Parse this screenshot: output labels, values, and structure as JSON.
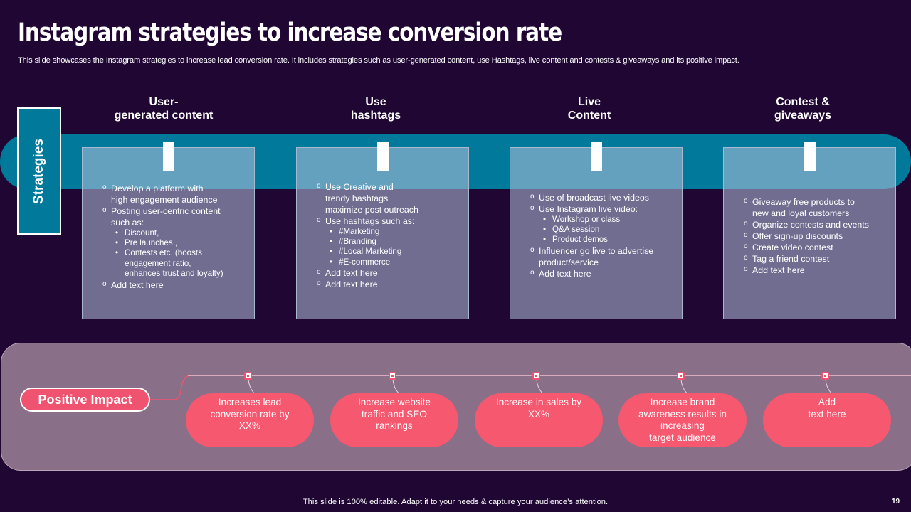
{
  "title": "Instagram strategies to increase conversion rate",
  "subtitle": "This slide showcases the Instagram strategies to increase lead conversion rate. It includes strategies such as user-generated content, use Hashtags, live content and contests & giveaways and its positive impact.",
  "strategies_label": "Strategies",
  "columns": [
    {
      "title_line1": "User-",
      "title_line2": "generated content",
      "items": [
        "Develop  a platform  with",
        "high  engagement  audience",
        "Posting user-centric content",
        "such as:",
        "Discount,",
        "Pre launches ,",
        "Contests etc. (boosts",
        "engagement ratio,",
        "enhances trust and loyalty)",
        "Add text here"
      ]
    },
    {
      "title_line1": "Use",
      "title_line2": "hashtags",
      "items": [
        "Use Creative  and",
        "trendy hashtags",
        "maximize post outreach",
        "Use hashtags  such as:",
        "#Marketing",
        "#Branding",
        "#Local Marketing",
        "#E-commerce",
        "Add text here",
        "Add text here"
      ]
    },
    {
      "title_line1": "Live",
      "title_line2": "Content",
      "items": [
        "Use of broadcast live videos",
        "Use Instagram  live video:",
        "Workshop or class",
        "Q&A session",
        "Product demos",
        "Influencer  go live  to advertise",
        "product/service",
        "Add text here"
      ]
    },
    {
      "title_line1": "Contest &",
      "title_line2": "giveaways",
      "items": [
        "Giveaway  free products to",
        "new and loyal customers",
        "Organize contests and events",
        "Offer  sign-up discounts",
        "Create video  contest",
        "Tag a friend  contest",
        "Add text here"
      ]
    }
  ],
  "impact": {
    "label": "Positive Impact",
    "items": [
      {
        "l1": "Increases lead",
        "l2": "conversion rate by",
        "l3": "XX%",
        "l4": ""
      },
      {
        "l1": "Increase website",
        "l2": "traffic and SEO",
        "l3": "rankings",
        "l4": ""
      },
      {
        "l1": "Increase in sales by",
        "l2": "XX%",
        "l3": "",
        "l4": ""
      },
      {
        "l1": "Increase brand",
        "l2": "awareness results in",
        "l3": "increasing",
        "l4": "target audience"
      },
      {
        "l1": "Add",
        "l2": "text here",
        "l3": "",
        "l4": ""
      }
    ]
  },
  "footer": "This slide is 100% editable. Adapt it to your needs & capture your audience’s attention.",
  "page_number": "19",
  "colors": {
    "background": "#1f0633",
    "band": "#00799b",
    "accent_pink": "#f5586f",
    "impact_area": "#8a6f89"
  }
}
